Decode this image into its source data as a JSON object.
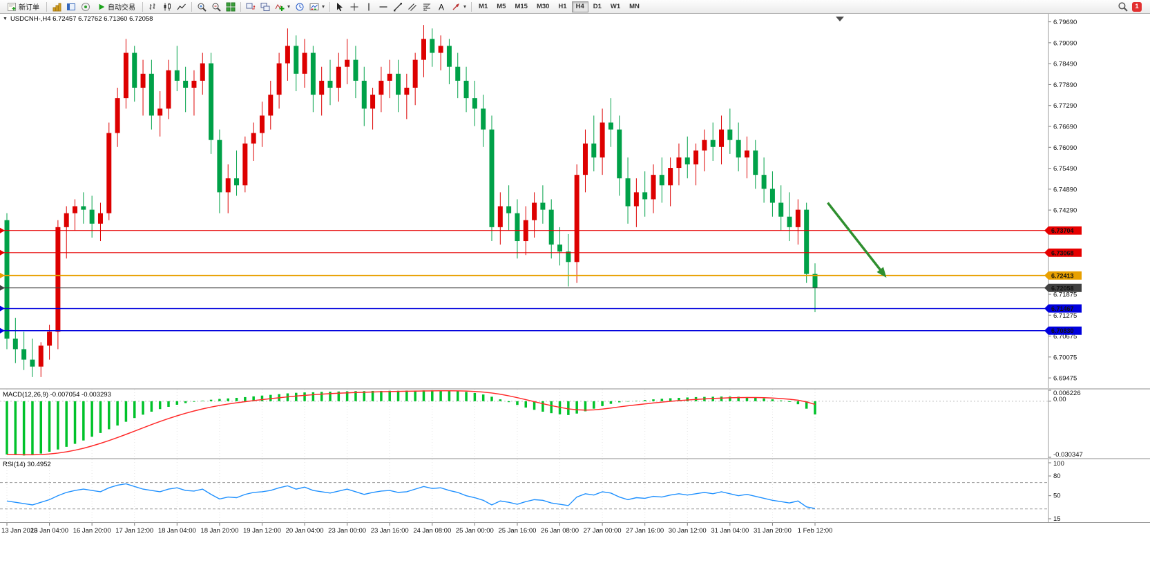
{
  "glyphs": {
    "collapse": "▼",
    "dropdown": "▾",
    "text_tool": "A"
  },
  "toolbar": {
    "new_order_label": "新订单",
    "autotrading_label": "自动交易",
    "timeframes": [
      "M1",
      "M5",
      "M15",
      "M30",
      "H1",
      "H4",
      "D1",
      "W1",
      "MN"
    ],
    "active_timeframe": "H4",
    "notification_count": "1",
    "icon_names": [
      "new-order",
      "market-watch",
      "navigator",
      "terminal",
      "autotrading",
      "bar-chart",
      "candlestick-chart",
      "line-chart",
      "zoom-in",
      "zoom-out",
      "tile-windows",
      "arrange-windows",
      "cascade-windows",
      "indicators",
      "periods-clock",
      "templates",
      "cursor",
      "crosshair",
      "vertical-line",
      "horizontal-line",
      "trendline",
      "channel",
      "fibonacci",
      "text",
      "arrows",
      "search",
      "notification"
    ]
  },
  "chart_data": [
    {
      "type": "candlestick",
      "symbol": "USDCNH-",
      "timeframe": "H4",
      "title_text": "USDCNH-,H4 6.72457 6.72762 6.71360 6.72058",
      "ohlc": {
        "open": "6.72457",
        "high": "6.72762",
        "low": "6.71360",
        "close": "6.72058"
      },
      "up_color": "#dd0000",
      "down_color": "#00a148",
      "price_range": [
        6.6918,
        6.7992
      ],
      "axis_labels": [
        "6.79690",
        "6.79090",
        "6.78490",
        "6.77890",
        "6.77290",
        "6.76690",
        "6.76090",
        "6.75490",
        "6.74890",
        "6.74290",
        "6.71875",
        "6.71275",
        "6.70675",
        "6.70075",
        "6.69475"
      ],
      "hlines": [
        {
          "price": 6.73704,
          "label": "6.73704",
          "color": "#e60000",
          "width": 1.2
        },
        {
          "price": 6.73068,
          "label": "6.73068",
          "color": "#e60000",
          "width": 1.2
        },
        {
          "price": 6.72413,
          "label": "6.72413",
          "color": "#e8a000",
          "width": 2
        },
        {
          "price": 6.72058,
          "label": "6.72058",
          "color": "#404040",
          "width": 1
        },
        {
          "price": 6.71467,
          "label": "6.71467",
          "color": "#0000dd",
          "width": 1.5
        },
        {
          "price": 6.7083,
          "label": "6.70830",
          "color": "#0000dd",
          "width": 1.5
        }
      ],
      "arrow": {
        "from_bar": 96.5,
        "from_price": 6.745,
        "to_bar": 103.4,
        "to_price": 6.7235,
        "color": "#2f8f2f"
      },
      "time_labels": [
        "13 Jan 2023",
        "16 Jan 04:00",
        "16 Jan 20:00",
        "17 Jan 12:00",
        "18 Jan 04:00",
        "18 Jan 20:00",
        "19 Jan 12:00",
        "20 Jan 04:00",
        "23 Jan 00:00",
        "23 Jan 16:00",
        "24 Jan 08:00",
        "25 Jan 00:00",
        "25 Jan 16:00",
        "26 Jan 08:00",
        "27 Jan 00:00",
        "27 Jan 16:00",
        "30 Jan 12:00",
        "31 Jan 04:00",
        "31 Jan 20:00",
        "1 Feb 12:00"
      ],
      "candles": [
        [
          6.74,
          6.742,
          6.703,
          6.706
        ],
        [
          6.706,
          6.712,
          6.699,
          6.703
        ],
        [
          6.703,
          6.708,
          6.697,
          6.7
        ],
        [
          6.7,
          6.706,
          6.695,
          6.698
        ],
        [
          6.698,
          6.705,
          6.695,
          6.704
        ],
        [
          6.704,
          6.71,
          6.7,
          6.708
        ],
        [
          6.708,
          6.74,
          6.703,
          6.738
        ],
        [
          6.738,
          6.744,
          6.729,
          6.742
        ],
        [
          6.742,
          6.746,
          6.737,
          6.744
        ],
        [
          6.744,
          6.748,
          6.739,
          6.743
        ],
        [
          6.743,
          6.747,
          6.735,
          6.739
        ],
        [
          6.739,
          6.745,
          6.734,
          6.742
        ],
        [
          6.742,
          6.768,
          6.74,
          6.765
        ],
        [
          6.765,
          6.778,
          6.761,
          6.775
        ],
        [
          6.775,
          6.792,
          6.772,
          6.788
        ],
        [
          6.788,
          6.79,
          6.774,
          6.778
        ],
        [
          6.778,
          6.786,
          6.77,
          6.782
        ],
        [
          6.782,
          6.786,
          6.766,
          6.77
        ],
        [
          6.77,
          6.777,
          6.764,
          6.772
        ],
        [
          6.772,
          6.786,
          6.769,
          6.783
        ],
        [
          6.783,
          6.79,
          6.777,
          6.78
        ],
        [
          6.78,
          6.784,
          6.771,
          6.778
        ],
        [
          6.778,
          6.783,
          6.77,
          6.78
        ],
        [
          6.78,
          6.788,
          6.776,
          6.785
        ],
        [
          6.785,
          6.788,
          6.759,
          6.763
        ],
        [
          6.763,
          6.766,
          6.742,
          6.748
        ],
        [
          6.748,
          6.756,
          6.742,
          6.752
        ],
        [
          6.752,
          6.76,
          6.747,
          6.75
        ],
        [
          6.75,
          6.764,
          6.748,
          6.762
        ],
        [
          6.762,
          6.768,
          6.757,
          6.765
        ],
        [
          6.765,
          6.774,
          6.761,
          6.77
        ],
        [
          6.77,
          6.78,
          6.766,
          6.776
        ],
        [
          6.776,
          6.788,
          6.772,
          6.785
        ],
        [
          6.785,
          6.795,
          6.78,
          6.79
        ],
        [
          6.79,
          6.793,
          6.777,
          6.782
        ],
        [
          6.782,
          6.792,
          6.778,
          6.788
        ],
        [
          6.788,
          6.79,
          6.771,
          6.776
        ],
        [
          6.776,
          6.784,
          6.77,
          6.78
        ],
        [
          6.78,
          6.786,
          6.773,
          6.778
        ],
        [
          6.778,
          6.788,
          6.774,
          6.784
        ],
        [
          6.784,
          6.792,
          6.779,
          6.786
        ],
        [
          6.786,
          6.79,
          6.775,
          6.78
        ],
        [
          6.78,
          6.784,
          6.767,
          6.772
        ],
        [
          6.772,
          6.778,
          6.766,
          6.776
        ],
        [
          6.776,
          6.784,
          6.771,
          6.78
        ],
        [
          6.78,
          6.786,
          6.775,
          6.782
        ],
        [
          6.782,
          6.786,
          6.771,
          6.776
        ],
        [
          6.776,
          6.782,
          6.769,
          6.778
        ],
        [
          6.778,
          6.788,
          6.773,
          6.786
        ],
        [
          6.786,
          6.796,
          6.781,
          6.792
        ],
        [
          6.792,
          6.795,
          6.784,
          6.788
        ],
        [
          6.788,
          6.793,
          6.783,
          6.79
        ],
        [
          6.79,
          6.792,
          6.779,
          6.784
        ],
        [
          6.784,
          6.788,
          6.775,
          6.78
        ],
        [
          6.78,
          6.784,
          6.771,
          6.775
        ],
        [
          6.775,
          6.78,
          6.767,
          6.772
        ],
        [
          6.772,
          6.776,
          6.761,
          6.766
        ],
        [
          6.766,
          6.77,
          6.734,
          6.738
        ],
        [
          6.738,
          6.748,
          6.733,
          6.744
        ],
        [
          6.744,
          6.75,
          6.737,
          6.742
        ],
        [
          6.742,
          6.746,
          6.729,
          6.734
        ],
        [
          6.734,
          6.744,
          6.73,
          6.74
        ],
        [
          6.74,
          6.748,
          6.735,
          6.745
        ],
        [
          6.745,
          6.75,
          6.739,
          6.743
        ],
        [
          6.743,
          6.746,
          6.729,
          6.733
        ],
        [
          6.733,
          6.738,
          6.727,
          6.731
        ],
        [
          6.731,
          6.736,
          6.721,
          6.728
        ],
        [
          6.728,
          6.756,
          6.722,
          6.753
        ],
        [
          6.753,
          6.766,
          6.748,
          6.762
        ],
        [
          6.762,
          6.77,
          6.754,
          6.758
        ],
        [
          6.758,
          6.772,
          6.753,
          6.768
        ],
        [
          6.768,
          6.775,
          6.761,
          6.766
        ],
        [
          6.766,
          6.77,
          6.747,
          6.752
        ],
        [
          6.752,
          6.758,
          6.739,
          6.744
        ],
        [
          6.744,
          6.752,
          6.738,
          6.748
        ],
        [
          6.748,
          6.754,
          6.741,
          6.746
        ],
        [
          6.746,
          6.756,
          6.742,
          6.753
        ],
        [
          6.753,
          6.758,
          6.745,
          6.75
        ],
        [
          6.75,
          6.758,
          6.744,
          6.755
        ],
        [
          6.755,
          6.762,
          6.75,
          6.758
        ],
        [
          6.758,
          6.764,
          6.752,
          6.756
        ],
        [
          6.756,
          6.762,
          6.75,
          6.76
        ],
        [
          6.76,
          6.766,
          6.754,
          6.763
        ],
        [
          6.763,
          6.768,
          6.757,
          6.761
        ],
        [
          6.761,
          6.77,
          6.756,
          6.766
        ],
        [
          6.766,
          6.772,
          6.759,
          6.763
        ],
        [
          6.763,
          6.768,
          6.754,
          6.758
        ],
        [
          6.758,
          6.764,
          6.752,
          6.76
        ],
        [
          6.76,
          6.763,
          6.749,
          6.753
        ],
        [
          6.753,
          6.758,
          6.745,
          6.749
        ],
        [
          6.749,
          6.754,
          6.741,
          6.745
        ],
        [
          6.745,
          6.75,
          6.737,
          6.741
        ],
        [
          6.741,
          6.748,
          6.734,
          6.738
        ],
        [
          6.738,
          6.746,
          6.733,
          6.743
        ],
        [
          6.743,
          6.745,
          6.722,
          6.72457
        ],
        [
          6.72457,
          6.72762,
          6.7136,
          6.72058
        ]
      ]
    },
    {
      "type": "bar",
      "name": "MACD",
      "label": "MACD(12,26,9) -0.007054 -0.003293",
      "histogram_color": "#00c22a",
      "signal_color": "#ff2a2a",
      "signal_period": 9,
      "range": [
        -0.030347,
        0.006226
      ],
      "axis_labels": [
        {
          "v": 0.006226,
          "t": "0.006226"
        },
        {
          "v": 0,
          "t": "0.00"
        },
        {
          "v": -0.030347,
          "t": "-0.030347"
        }
      ],
      "values": [
        -0.0285,
        -0.0288,
        -0.029,
        -0.0287,
        -0.028,
        -0.027,
        -0.0258,
        -0.0244,
        -0.0228,
        -0.021,
        -0.019,
        -0.017,
        -0.015,
        -0.013,
        -0.011,
        -0.009,
        -0.0072,
        -0.0056,
        -0.0042,
        -0.003,
        -0.0019,
        -0.001,
        -0.0003,
        0.0003,
        0.0008,
        0.0012,
        0.0015,
        0.0018,
        0.0022,
        0.0026,
        0.003,
        0.0034,
        0.0038,
        0.0042,
        0.0045,
        0.0047,
        0.0048,
        0.005,
        0.0051,
        0.0052,
        0.0053,
        0.0054,
        0.0054,
        0.0055,
        0.0055,
        0.0056,
        0.0056,
        0.0057,
        0.0057,
        0.0058,
        0.0058,
        0.0057,
        0.0056,
        0.0054,
        0.005,
        0.0044,
        0.0036,
        0.0024,
        0.001,
        -0.0005,
        -0.002,
        -0.0034,
        -0.0046,
        -0.0056,
        -0.0064,
        -0.007,
        -0.0074,
        -0.0066,
        -0.0054,
        -0.004,
        -0.0026,
        -0.0014,
        -0.0006,
        -0.0002,
        0.0002,
        0.0006,
        0.001,
        0.0013,
        0.0016,
        0.0018,
        0.002,
        0.0022,
        0.0023,
        0.0024,
        0.0025,
        0.0025,
        0.0024,
        0.0022,
        0.0019,
        0.0015,
        0.001,
        0.0004,
        -0.0004,
        -0.0016,
        -0.004,
        -0.00705
      ]
    },
    {
      "type": "line",
      "name": "RSI",
      "label": "RSI(14) 30.4952",
      "line_color": "#1e90ff",
      "level_color": "#9b9b9b",
      "levels": [
        70,
        30
      ],
      "range": [
        15,
        100
      ],
      "axis_labels": [
        {
          "v": 100,
          "t": "100"
        },
        {
          "v": 80,
          "t": "80"
        },
        {
          "v": 50,
          "t": "50"
        },
        {
          "v": 15,
          "t": "15"
        }
      ],
      "values": [
        42,
        40,
        38,
        36,
        40,
        44,
        50,
        55,
        58,
        60,
        58,
        56,
        62,
        66,
        68,
        64,
        60,
        58,
        56,
        60,
        62,
        58,
        57,
        60,
        52,
        45,
        48,
        47,
        52,
        55,
        56,
        58,
        62,
        65,
        60,
        63,
        58,
        56,
        54,
        57,
        60,
        56,
        52,
        55,
        57,
        58,
        55,
        56,
        60,
        64,
        61,
        62,
        58,
        55,
        50,
        47,
        43,
        36,
        42,
        40,
        37,
        41,
        44,
        43,
        39,
        37,
        35,
        48,
        53,
        51,
        56,
        54,
        48,
        44,
        47,
        46,
        49,
        48,
        51,
        53,
        51,
        53,
        55,
        53,
        56,
        53,
        50,
        52,
        49,
        46,
        43,
        41,
        39,
        42,
        33,
        30.4952
      ]
    }
  ]
}
